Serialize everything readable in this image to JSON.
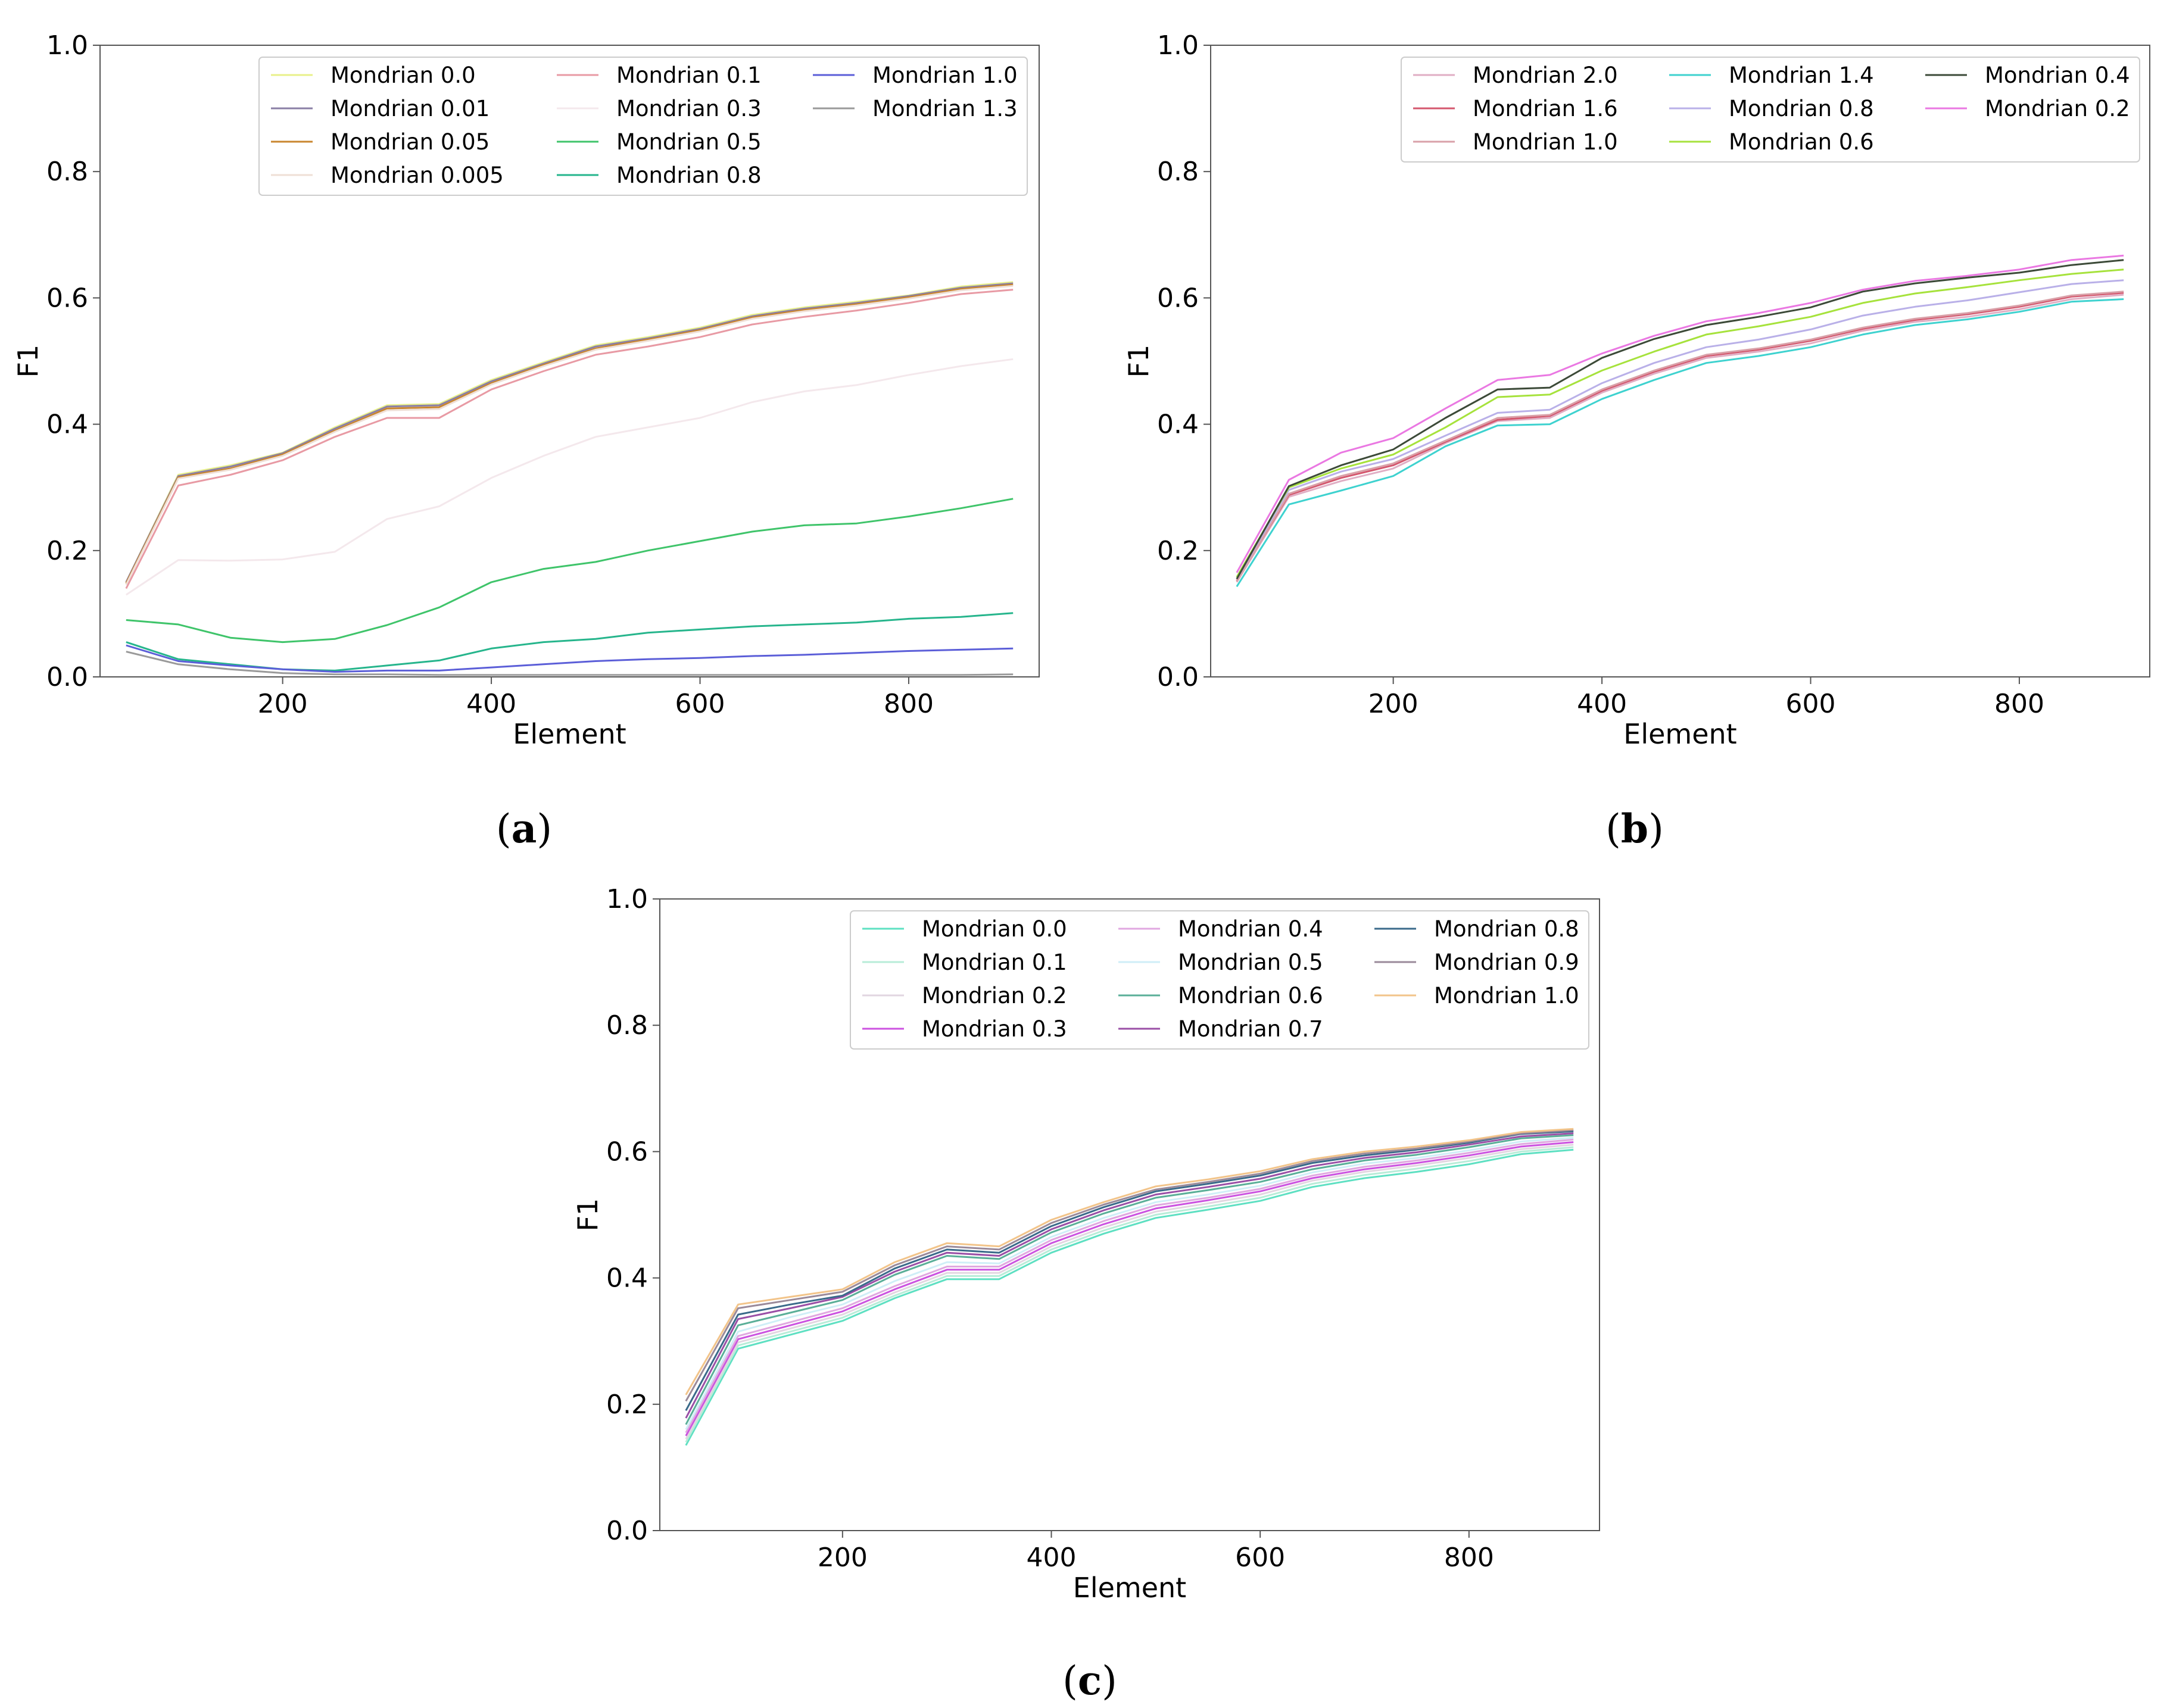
{
  "chart_data": [
    {
      "id": "a",
      "type": "line",
      "panel_label": "a",
      "xlabel": "Element",
      "ylabel": "F1",
      "xlim": [
        25,
        925
      ],
      "ylim": [
        0,
        1.0
      ],
      "xticks": [
        200,
        400,
        600,
        800
      ],
      "yticks": [
        0.0,
        0.2,
        0.4,
        0.6,
        0.8,
        1.0
      ],
      "xtick_labels": [
        "200",
        "400",
        "600",
        "800"
      ],
      "ytick_labels": [
        "0.0",
        "0.2",
        "0.4",
        "0.6",
        "0.8",
        "1.0"
      ],
      "legend_position": "top-right",
      "legend_columns": 3,
      "x": [
        50,
        100,
        150,
        200,
        250,
        300,
        350,
        400,
        450,
        500,
        550,
        600,
        650,
        700,
        750,
        800,
        850,
        900
      ],
      "series": [
        {
          "name": "Mondrian 0.0",
          "color": "#e8f08a",
          "values": [
            0.15,
            0.32,
            0.335,
            0.355,
            0.395,
            0.43,
            0.432,
            0.47,
            0.498,
            0.525,
            0.538,
            0.553,
            0.573,
            0.585,
            0.594,
            0.604,
            0.618,
            0.625
          ]
        },
        {
          "name": "Mondrian 0.01",
          "color": "#8a7fa6",
          "values": [
            0.15,
            0.318,
            0.333,
            0.354,
            0.393,
            0.428,
            0.43,
            0.468,
            0.496,
            0.523,
            0.536,
            0.551,
            0.571,
            0.583,
            0.592,
            0.603,
            0.616,
            0.623
          ]
        },
        {
          "name": "Mondrian 0.05",
          "color": "#c9852e",
          "values": [
            0.148,
            0.316,
            0.33,
            0.352,
            0.39,
            0.425,
            0.427,
            0.465,
            0.494,
            0.52,
            0.534,
            0.549,
            0.569,
            0.581,
            0.59,
            0.601,
            0.614,
            0.621
          ]
        },
        {
          "name": "Mondrian 0.005",
          "color": "#efdfd6",
          "values": [
            0.146,
            0.314,
            0.328,
            0.35,
            0.388,
            0.422,
            0.424,
            0.463,
            0.492,
            0.518,
            0.532,
            0.547,
            0.567,
            0.579,
            0.588,
            0.599,
            0.612,
            0.619
          ]
        },
        {
          "name": "Mondrian 0.1",
          "color": "#e89aa4",
          "values": [
            0.14,
            0.303,
            0.32,
            0.343,
            0.38,
            0.41,
            0.41,
            0.455,
            0.484,
            0.51,
            0.523,
            0.538,
            0.558,
            0.57,
            0.58,
            0.592,
            0.606,
            0.613
          ]
        },
        {
          "name": "Mondrian 0.3",
          "color": "#f4e8ec",
          "values": [
            0.13,
            0.185,
            0.184,
            0.186,
            0.198,
            0.25,
            0.27,
            0.315,
            0.35,
            0.38,
            0.395,
            0.41,
            0.435,
            0.452,
            0.462,
            0.478,
            0.492,
            0.503
          ]
        },
        {
          "name": "Mondrian 0.5",
          "color": "#3fc46a",
          "values": [
            0.09,
            0.083,
            0.062,
            0.055,
            0.06,
            0.082,
            0.11,
            0.15,
            0.171,
            0.182,
            0.2,
            0.215,
            0.23,
            0.24,
            0.243,
            0.254,
            0.267,
            0.282
          ]
        },
        {
          "name": "Mondrian 0.8",
          "color": "#26b58c",
          "values": [
            0.055,
            0.028,
            0.02,
            0.012,
            0.01,
            0.018,
            0.026,
            0.045,
            0.055,
            0.06,
            0.07,
            0.075,
            0.08,
            0.083,
            0.086,
            0.092,
            0.095,
            0.101
          ]
        },
        {
          "name": "Mondrian 1.0",
          "color": "#5b5ed8",
          "values": [
            0.05,
            0.025,
            0.018,
            0.012,
            0.008,
            0.01,
            0.01,
            0.015,
            0.02,
            0.025,
            0.028,
            0.03,
            0.033,
            0.035,
            0.038,
            0.041,
            0.043,
            0.045
          ]
        },
        {
          "name": "Mondrian 1.3",
          "color": "#9a9a9a",
          "values": [
            0.04,
            0.02,
            0.012,
            0.006,
            0.004,
            0.004,
            0.003,
            0.003,
            0.003,
            0.003,
            0.003,
            0.003,
            0.003,
            0.003,
            0.003,
            0.003,
            0.003,
            0.004
          ]
        }
      ]
    },
    {
      "id": "b",
      "type": "line",
      "panel_label": "b",
      "xlabel": "Element",
      "ylabel": "F1",
      "xlim": [
        25,
        925
      ],
      "ylim": [
        0,
        1.0
      ],
      "xticks": [
        200,
        400,
        600,
        800
      ],
      "yticks": [
        0.0,
        0.2,
        0.4,
        0.6,
        0.8,
        1.0
      ],
      "xtick_labels": [
        "200",
        "400",
        "600",
        "800"
      ],
      "ytick_labels": [
        "0.0",
        "0.2",
        "0.4",
        "0.6",
        "0.8",
        "1.0"
      ],
      "legend_position": "top-right",
      "legend_columns": 3,
      "x": [
        50,
        100,
        150,
        200,
        250,
        300,
        350,
        400,
        450,
        500,
        550,
        600,
        650,
        700,
        750,
        800,
        850,
        900
      ],
      "series": [
        {
          "name": "Mondrian 2.0",
          "color": "#e0aec4",
          "values": [
            0.15,
            0.285,
            0.31,
            0.33,
            0.37,
            0.405,
            0.41,
            0.45,
            0.48,
            0.505,
            0.515,
            0.528,
            0.548,
            0.562,
            0.57,
            0.582,
            0.598,
            0.605
          ]
        },
        {
          "name": "Mondrian 1.6",
          "color": "#d4576e",
          "values": [
            0.152,
            0.288,
            0.315,
            0.335,
            0.372,
            0.407,
            0.413,
            0.453,
            0.483,
            0.508,
            0.518,
            0.532,
            0.551,
            0.565,
            0.574,
            0.586,
            0.602,
            0.608
          ]
        },
        {
          "name": "Mondrian 1.0",
          "color": "#d9a0a8",
          "values": [
            0.151,
            0.29,
            0.318,
            0.338,
            0.374,
            0.41,
            0.415,
            0.455,
            0.485,
            0.51,
            0.52,
            0.534,
            0.553,
            0.567,
            0.576,
            0.588,
            0.604,
            0.61
          ]
        },
        {
          "name": "Mondrian 1.4",
          "color": "#3ed2cf",
          "values": [
            0.143,
            0.273,
            0.295,
            0.318,
            0.365,
            0.398,
            0.4,
            0.44,
            0.47,
            0.497,
            0.508,
            0.522,
            0.542,
            0.557,
            0.566,
            0.578,
            0.594,
            0.598
          ]
        },
        {
          "name": "Mondrian 0.8",
          "color": "#b9b0e8",
          "values": [
            0.155,
            0.296,
            0.325,
            0.345,
            0.382,
            0.418,
            0.423,
            0.465,
            0.497,
            0.522,
            0.534,
            0.55,
            0.572,
            0.586,
            0.596,
            0.609,
            0.622,
            0.628
          ]
        },
        {
          "name": "Mondrian 0.6",
          "color": "#a6e23c",
          "values": [
            0.158,
            0.3,
            0.33,
            0.352,
            0.395,
            0.443,
            0.447,
            0.485,
            0.515,
            0.542,
            0.555,
            0.57,
            0.592,
            0.607,
            0.617,
            0.628,
            0.638,
            0.645
          ]
        },
        {
          "name": "Mondrian 0.4",
          "color": "#3c4a38",
          "values": [
            0.155,
            0.302,
            0.335,
            0.36,
            0.41,
            0.455,
            0.458,
            0.505,
            0.535,
            0.557,
            0.57,
            0.585,
            0.61,
            0.623,
            0.632,
            0.64,
            0.652,
            0.66
          ]
        },
        {
          "name": "Mondrian 0.2",
          "color": "#ea78e2",
          "values": [
            0.165,
            0.312,
            0.355,
            0.378,
            0.425,
            0.47,
            0.478,
            0.512,
            0.54,
            0.563,
            0.576,
            0.592,
            0.613,
            0.627,
            0.635,
            0.645,
            0.66,
            0.667
          ]
        }
      ]
    },
    {
      "id": "c",
      "type": "line",
      "panel_label": "c",
      "xlabel": "Element",
      "ylabel": "F1",
      "xlim": [
        25,
        925
      ],
      "ylim": [
        0,
        1.0
      ],
      "xticks": [
        200,
        400,
        600,
        800
      ],
      "yticks": [
        0.0,
        0.2,
        0.4,
        0.6,
        0.8,
        1.0
      ],
      "xtick_labels": [
        "200",
        "400",
        "600",
        "800"
      ],
      "ytick_labels": [
        "0.0",
        "0.2",
        "0.4",
        "0.6",
        "0.8",
        "1.0"
      ],
      "legend_position": "top-right",
      "legend_columns": 3,
      "x": [
        50,
        100,
        150,
        200,
        250,
        300,
        350,
        400,
        450,
        500,
        550,
        600,
        650,
        700,
        750,
        800,
        850,
        900
      ],
      "series": [
        {
          "name": "Mondrian 0.0",
          "color": "#5ee0c2",
          "values": [
            0.135,
            0.288,
            0.31,
            0.332,
            0.368,
            0.398,
            0.398,
            0.44,
            0.47,
            0.495,
            0.508,
            0.522,
            0.544,
            0.558,
            0.568,
            0.58,
            0.596,
            0.603
          ]
        },
        {
          "name": "Mondrian 0.1",
          "color": "#b8ecd8",
          "values": [
            0.14,
            0.293,
            0.315,
            0.337,
            0.372,
            0.403,
            0.403,
            0.445,
            0.475,
            0.5,
            0.513,
            0.527,
            0.549,
            0.563,
            0.573,
            0.585,
            0.6,
            0.607
          ]
        },
        {
          "name": "Mondrian 0.2",
          "color": "#e2d6e0",
          "values": [
            0.145,
            0.298,
            0.32,
            0.342,
            0.377,
            0.408,
            0.408,
            0.45,
            0.48,
            0.505,
            0.518,
            0.532,
            0.554,
            0.568,
            0.578,
            0.59,
            0.604,
            0.611
          ]
        },
        {
          "name": "Mondrian 0.3",
          "color": "#cc52e0",
          "values": [
            0.15,
            0.303,
            0.325,
            0.347,
            0.382,
            0.413,
            0.413,
            0.455,
            0.485,
            0.51,
            0.523,
            0.537,
            0.558,
            0.572,
            0.582,
            0.594,
            0.608,
            0.615
          ]
        },
        {
          "name": "Mondrian 0.4",
          "color": "#e0a8e0",
          "values": [
            0.155,
            0.308,
            0.33,
            0.352,
            0.387,
            0.418,
            0.418,
            0.46,
            0.49,
            0.515,
            0.527,
            0.541,
            0.562,
            0.576,
            0.586,
            0.598,
            0.612,
            0.619
          ]
        },
        {
          "name": "Mondrian 0.5",
          "color": "#cfeef7",
          "values": [
            0.16,
            0.315,
            0.338,
            0.358,
            0.395,
            0.425,
            0.423,
            0.465,
            0.495,
            0.52,
            0.532,
            0.546,
            0.567,
            0.581,
            0.59,
            0.602,
            0.616,
            0.622
          ]
        },
        {
          "name": "Mondrian 0.6",
          "color": "#5aaf98",
          "values": [
            0.168,
            0.325,
            0.345,
            0.365,
            0.405,
            0.435,
            0.43,
            0.472,
            0.502,
            0.527,
            0.539,
            0.552,
            0.572,
            0.586,
            0.595,
            0.607,
            0.621,
            0.626
          ]
        },
        {
          "name": "Mondrian 0.7",
          "color": "#9a4fa6",
          "values": [
            0.178,
            0.335,
            0.352,
            0.37,
            0.41,
            0.44,
            0.435,
            0.477,
            0.507,
            0.532,
            0.544,
            0.557,
            0.577,
            0.59,
            0.599,
            0.611,
            0.624,
            0.629
          ]
        },
        {
          "name": "Mondrian 0.8",
          "color": "#3a6a8a",
          "values": [
            0.19,
            0.342,
            0.358,
            0.372,
            0.415,
            0.445,
            0.44,
            0.482,
            0.512,
            0.537,
            0.549,
            0.562,
            0.582,
            0.594,
            0.603,
            0.614,
            0.628,
            0.632
          ]
        },
        {
          "name": "Mondrian 0.9",
          "color": "#9a8a9a",
          "values": [
            0.205,
            0.352,
            0.365,
            0.378,
            0.42,
            0.45,
            0.445,
            0.487,
            0.516,
            0.54,
            0.552,
            0.565,
            0.585,
            0.597,
            0.605,
            0.616,
            0.629,
            0.634
          ]
        },
        {
          "name": "Mondrian 1.0",
          "color": "#f2c48a",
          "values": [
            0.215,
            0.358,
            0.37,
            0.382,
            0.425,
            0.455,
            0.45,
            0.492,
            0.52,
            0.545,
            0.556,
            0.569,
            0.588,
            0.6,
            0.608,
            0.618,
            0.631,
            0.636
          ]
        }
      ]
    }
  ]
}
